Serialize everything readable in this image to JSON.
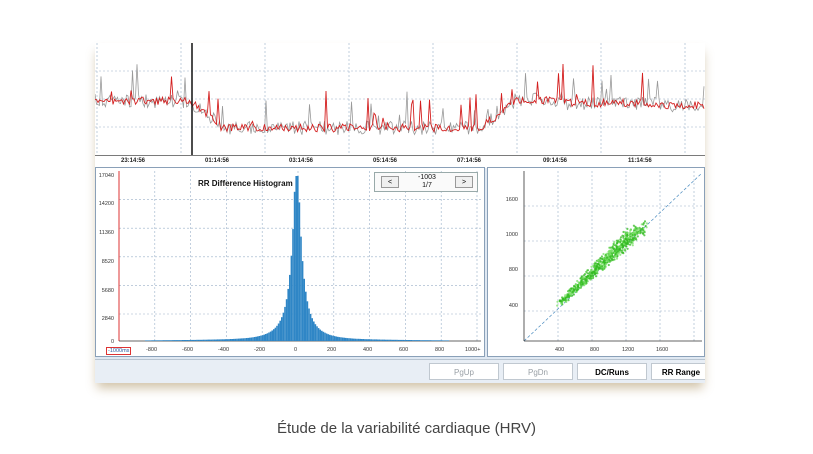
{
  "timeline": {
    "labels": [
      "23:14:56",
      "01:14:56",
      "03:14:56",
      "05:14:56",
      "07:14:56",
      "09:14:56",
      "11:14:56"
    ]
  },
  "histogram": {
    "title": "RR Difference Histogram",
    "nav": {
      "prev_label": "<",
      "next_label": ">",
      "value": "-1003",
      "page": "1/7"
    },
    "y_ticks": [
      "17040",
      "14200",
      "11360",
      "8520",
      "5680",
      "2840",
      "0"
    ],
    "x_ticks": [
      "-1000ms",
      "-800",
      "-600",
      "-400",
      "-200",
      "0",
      "200",
      "400",
      "600",
      "800",
      "1000+"
    ]
  },
  "scatter": {
    "y_ticks": [
      "1600",
      "1000",
      "800",
      "400"
    ],
    "x_ticks": [
      "400",
      "800",
      "1200",
      "1600"
    ]
  },
  "toolbar": {
    "pgup_label": "PgUp",
    "pgdn_label": "PgDn",
    "dcruns_label": "DC/Runs",
    "rrrange_label": "RR Range"
  },
  "caption": "Étude de la variabilité cardiaque (HRV)",
  "colors": {
    "trace_red": "#d42020",
    "trace_gray": "#9a9a9a",
    "histogram_bar": "#2f86c6",
    "scatter_green": "#33bb22",
    "grid": "#9ab0c8"
  }
}
